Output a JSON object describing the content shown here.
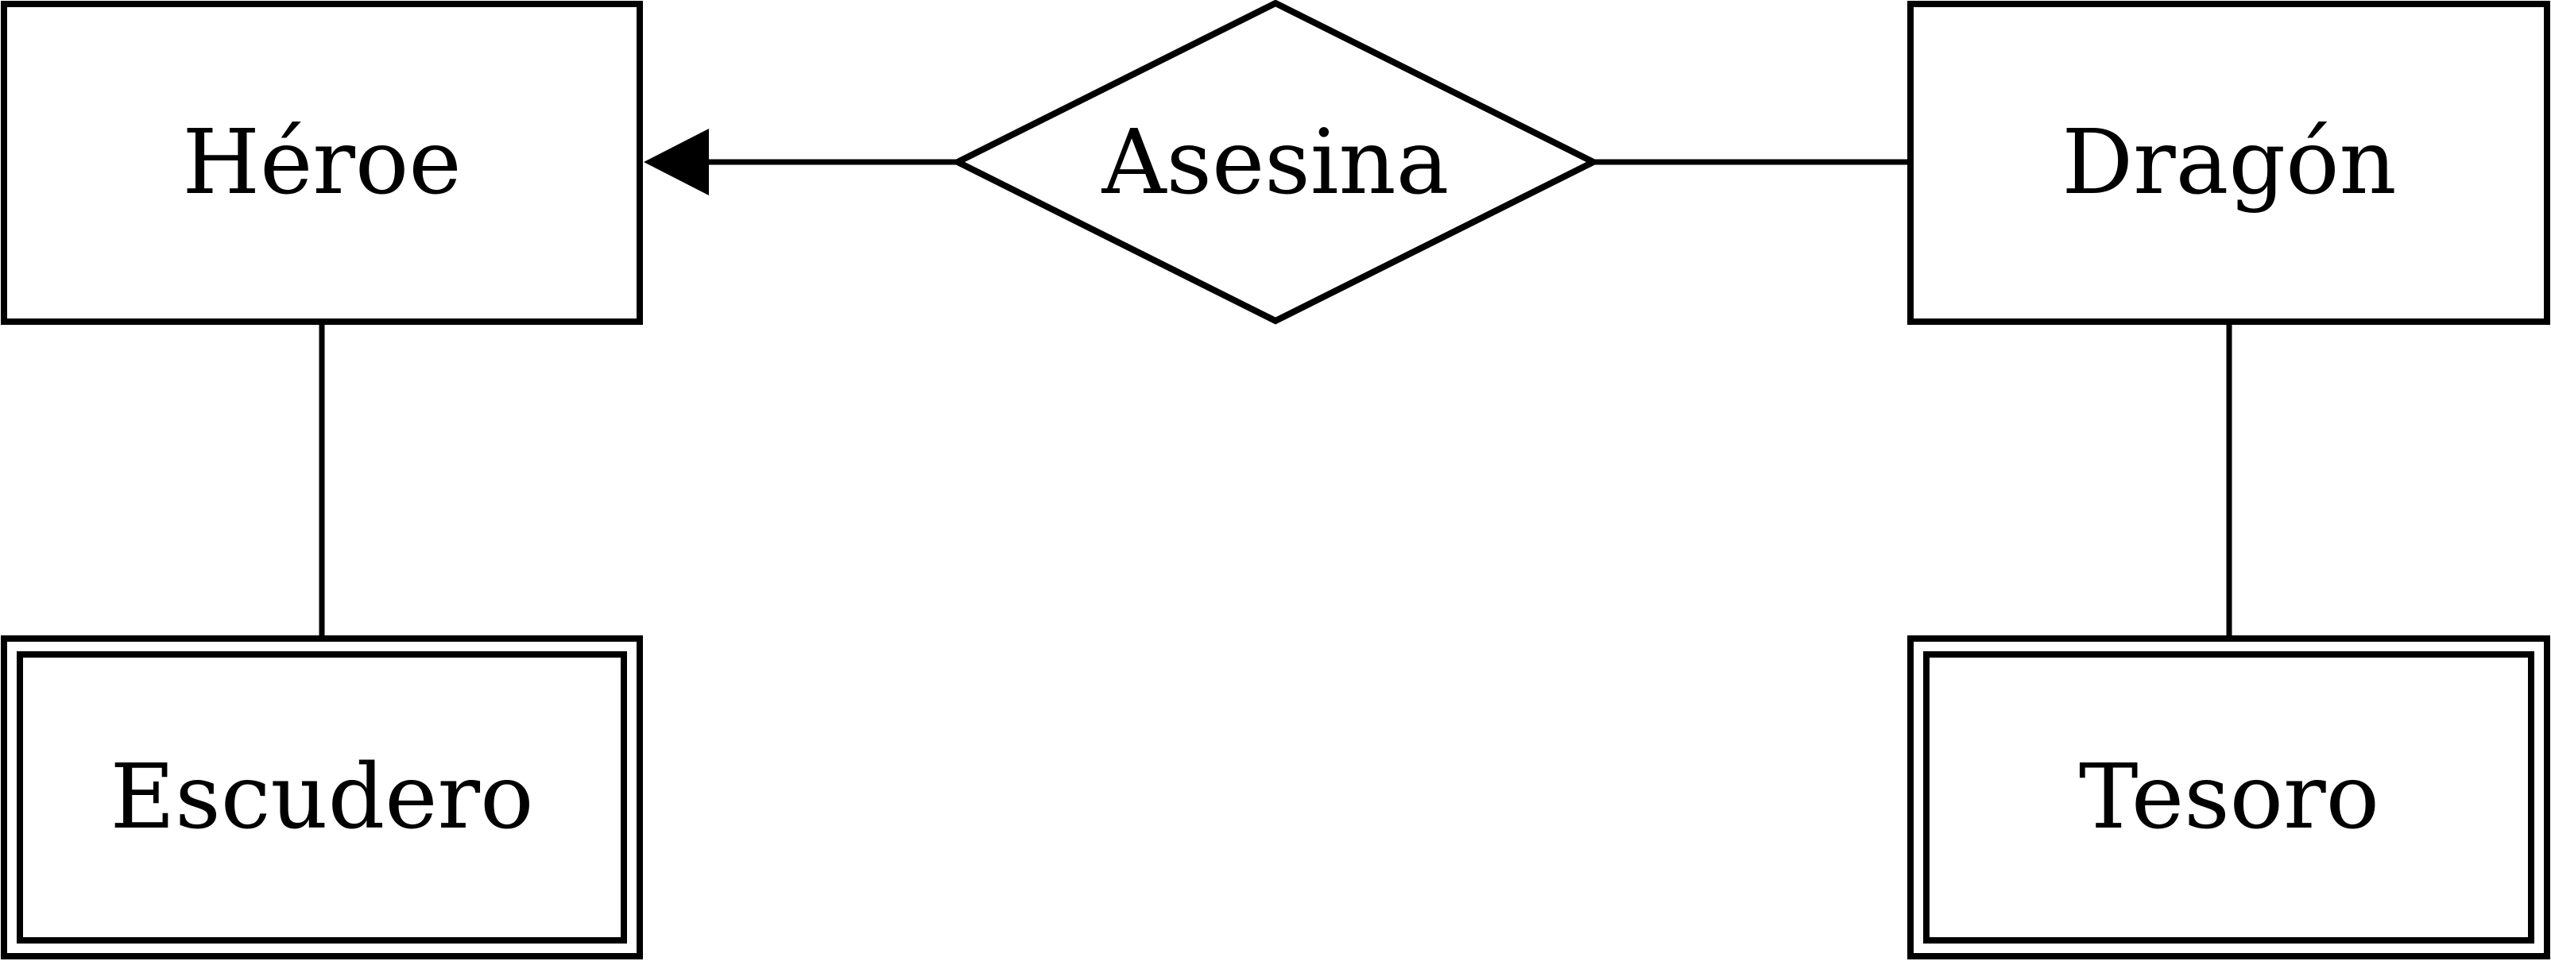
{
  "diagram": {
    "entities": [
      {
        "id": "heroe",
        "label": "Héroe",
        "weak": false
      },
      {
        "id": "dragon",
        "label": "Dragón",
        "weak": false
      },
      {
        "id": "escudero",
        "label": "Escudero",
        "weak": true
      },
      {
        "id": "tesoro",
        "label": "Tesoro",
        "weak": true
      }
    ],
    "relationships": [
      {
        "id": "asesina",
        "label": "Asesina"
      }
    ],
    "connections": [
      {
        "from": "asesina",
        "to": "heroe",
        "arrow": true
      },
      {
        "from": "asesina",
        "to": "dragon",
        "arrow": false
      },
      {
        "from": "heroe",
        "to": "escudero",
        "arrow": false
      },
      {
        "from": "dragon",
        "to": "tesoro",
        "arrow": false
      }
    ]
  }
}
